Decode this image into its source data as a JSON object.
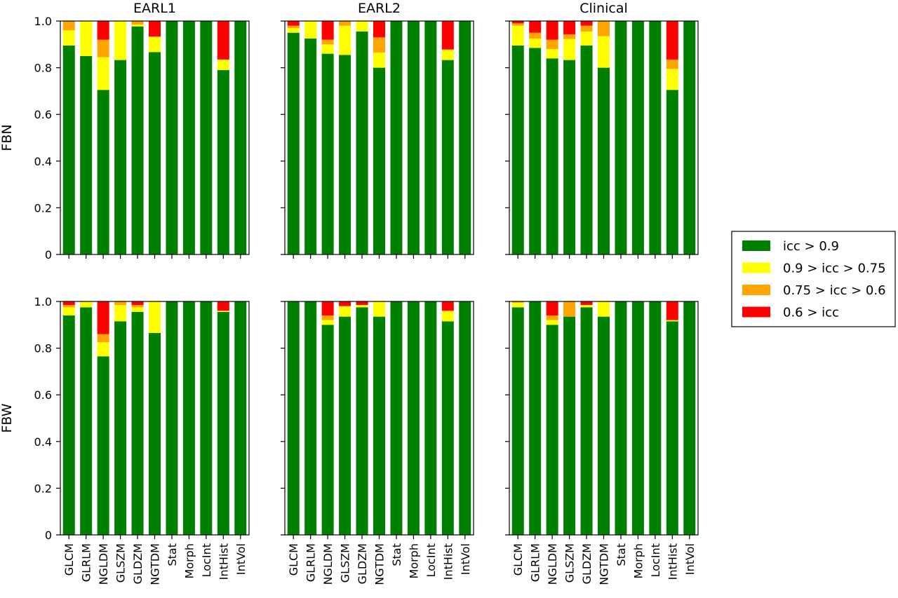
{
  "chart_data": {
    "type": "bar",
    "stacked": true,
    "column_titles": [
      "EARL1",
      "EARL2",
      "Clinical"
    ],
    "row_labels": [
      "FBN",
      "FBW"
    ],
    "categories": [
      "GLCM",
      "GLRLM",
      "NGLDM",
      "GLSZM",
      "GLDZM",
      "NGTDM",
      "Stat",
      "Morph",
      "LocInt",
      "IntHist",
      "IntVol"
    ],
    "ylim": [
      0,
      1.0
    ],
    "yticks": [
      "0",
      "0.2",
      "0.4",
      "0.6",
      "0.8",
      "1.0"
    ],
    "legend": {
      "position": "right",
      "entries": [
        {
          "label": "icc > 0.9",
          "color": "#008000"
        },
        {
          "label": "0.9 > icc > 0.75",
          "color": "#ffff00"
        },
        {
          "label": "0.75 > icc > 0.6",
          "color": "#ffa500"
        },
        {
          "label": "0.6 > icc",
          "color": "#ff0000"
        }
      ]
    },
    "panels": [
      {
        "row": "FBN",
        "column": "EARL1",
        "series": [
          {
            "name": "icc > 0.9",
            "values": [
              0.895,
              0.85,
              0.705,
              0.833,
              0.977,
              0.867,
              1.0,
              1.0,
              1.0,
              0.79,
              1.0
            ]
          },
          {
            "name": "0.9 > icc > 0.75",
            "values": [
              0.065,
              0.15,
              0.14,
              0.167,
              0.008,
              0.066,
              0,
              0,
              0,
              0.045,
              0
            ]
          },
          {
            "name": "0.75 > icc > 0.6",
            "values": [
              0.04,
              0,
              0.075,
              0,
              0.015,
              0,
              0,
              0,
              0,
              0,
              0
            ]
          },
          {
            "name": "0.6 > icc",
            "values": [
              0,
              0,
              0.08,
              0,
              0,
              0.067,
              0,
              0,
              0,
              0.165,
              0
            ]
          }
        ]
      },
      {
        "row": "FBN",
        "column": "EARL2",
        "series": [
          {
            "name": "icc > 0.9",
            "values": [
              0.95,
              0.925,
              0.86,
              0.855,
              0.955,
              0.8,
              1.0,
              1.0,
              1.0,
              0.833,
              1.0
            ]
          },
          {
            "name": "0.9 > icc > 0.75",
            "values": [
              0.02,
              0.075,
              0.04,
              0.125,
              0.045,
              0.065,
              0,
              0,
              0,
              0.045,
              0
            ]
          },
          {
            "name": "0.75 > icc > 0.6",
            "values": [
              0.01,
              0,
              0.02,
              0.02,
              0,
              0.065,
              0,
              0,
              0,
              0,
              0
            ]
          },
          {
            "name": "0.6 > icc",
            "values": [
              0.02,
              0,
              0.08,
              0,
              0,
              0.07,
              0,
              0,
              0,
              0.122,
              0
            ]
          }
        ]
      },
      {
        "row": "FBN",
        "column": "Clinical",
        "series": [
          {
            "name": "icc > 0.9",
            "values": [
              0.895,
              0.885,
              0.84,
              0.833,
              0.895,
              0.8,
              1.0,
              1.0,
              1.0,
              0.705,
              1.0
            ]
          },
          {
            "name": "0.9 > icc > 0.75",
            "values": [
              0.085,
              0.04,
              0.04,
              0.09,
              0.06,
              0.135,
              0,
              0,
              0,
              0.09,
              0
            ]
          },
          {
            "name": "0.75 > icc > 0.6",
            "values": [
              0.01,
              0.025,
              0.04,
              0.02,
              0.025,
              0.065,
              0,
              0,
              0,
              0.04,
              0
            ]
          },
          {
            "name": "0.6 > icc",
            "values": [
              0.01,
              0.05,
              0.08,
              0.057,
              0.02,
              0,
              0,
              0,
              0,
              0.165,
              0
            ]
          }
        ]
      },
      {
        "row": "FBW",
        "column": "EARL1",
        "series": [
          {
            "name": "icc > 0.9",
            "values": [
              0.94,
              0.975,
              0.765,
              0.915,
              0.955,
              0.865,
              1.0,
              1.0,
              1.0,
              0.955,
              1.0
            ]
          },
          {
            "name": "0.9 > icc > 0.75",
            "values": [
              0.035,
              0.025,
              0.06,
              0.07,
              0.02,
              0.135,
              0,
              0,
              0,
              0.005,
              0
            ]
          },
          {
            "name": "0.75 > icc > 0.6",
            "values": [
              0.01,
              0,
              0.035,
              0.015,
              0.01,
              0,
              0,
              0,
              0,
              0,
              0
            ]
          },
          {
            "name": "0.6 > icc",
            "values": [
              0.015,
              0,
              0.14,
              0,
              0.015,
              0,
              0,
              0,
              0,
              0.04,
              0
            ]
          }
        ]
      },
      {
        "row": "FBW",
        "column": "EARL2",
        "series": [
          {
            "name": "icc > 0.9",
            "values": [
              1.0,
              1.0,
              0.9,
              0.935,
              0.975,
              0.935,
              1.0,
              1.0,
              1.0,
              0.915,
              1.0
            ]
          },
          {
            "name": "0.9 > icc > 0.75",
            "values": [
              0,
              0,
              0.02,
              0.045,
              0.01,
              0.065,
              0,
              0,
              0,
              0.045,
              0
            ]
          },
          {
            "name": "0.75 > icc > 0.6",
            "values": [
              0,
              0,
              0.02,
              0,
              0,
              0,
              0,
              0,
              0,
              0,
              0
            ]
          },
          {
            "name": "0.6 > icc",
            "values": [
              0,
              0,
              0.06,
              0.02,
              0.015,
              0,
              0,
              0,
              0,
              0.04,
              0
            ]
          }
        ]
      },
      {
        "row": "FBW",
        "column": "Clinical",
        "series": [
          {
            "name": "icc > 0.9",
            "values": [
              0.975,
              1.0,
              0.9,
              0.935,
              0.975,
              0.935,
              1.0,
              1.0,
              1.0,
              0.915,
              1.0
            ]
          },
          {
            "name": "0.9 > icc > 0.75",
            "values": [
              0.02,
              0,
              0.02,
              0,
              0.01,
              0.065,
              0,
              0,
              0,
              0.005,
              0
            ]
          },
          {
            "name": "0.75 > icc > 0.6",
            "values": [
              0.005,
              0,
              0.02,
              0.065,
              0,
              0,
              0,
              0,
              0,
              0,
              0
            ]
          },
          {
            "name": "0.6 > icc",
            "values": [
              0,
              0,
              0.06,
              0,
              0.015,
              0,
              0,
              0,
              0,
              0.08,
              0
            ]
          }
        ]
      }
    ]
  }
}
